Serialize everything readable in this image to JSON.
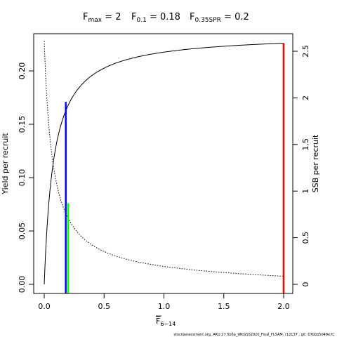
{
  "chart_data": {
    "type": "line",
    "title_parts": [
      {
        "main": "F",
        "sub": "max",
        "rest": " = 2"
      },
      {
        "main": "F",
        "sub": "0.1",
        "rest": " = 0.18"
      },
      {
        "main": "F",
        "sub": "0.35SPR",
        "rest": " = 0.2"
      }
    ],
    "xlabel": {
      "main": "F",
      "sub": "6−14"
    },
    "ylabel_left": "Yield per recruit",
    "ylabel_right": "SSB per recruit",
    "xlim": [
      0,
      2
    ],
    "ylim_left": [
      0,
      0.23
    ],
    "ylim_right": [
      0,
      2.6
    ],
    "x_ticks": [
      "0.0",
      "0.5",
      "1.0",
      "1.5",
      "2.0"
    ],
    "x_tick_values": [
      0,
      0.5,
      1.0,
      1.5,
      2.0
    ],
    "y_left_ticks": [
      "0.00",
      "0.05",
      "0.10",
      "0.15",
      "0.20"
    ],
    "y_left_tick_values": [
      0,
      0.05,
      0.1,
      0.15,
      0.2
    ],
    "y_right_ticks": [
      "0",
      "0.5",
      "1",
      "1.5",
      "2",
      "2.5"
    ],
    "y_right_tick_values": [
      0,
      0.5,
      1,
      1.5,
      2,
      2.5
    ],
    "series": [
      {
        "axis": "left",
        "style": "solid",
        "color": "#000000",
        "x": [
          0,
          0.02,
          0.05,
          0.08,
          0.1,
          0.13,
          0.15,
          0.18,
          0.2,
          0.25,
          0.3,
          0.4,
          0.5,
          0.6,
          0.7,
          0.8,
          1.0,
          1.2,
          1.4,
          1.6,
          1.8,
          2.0
        ],
        "values": [
          0,
          0.041,
          0.087,
          0.121,
          0.138,
          0.157,
          0.166,
          0.176,
          0.181,
          0.19,
          0.196,
          0.204,
          0.209,
          0.213,
          0.215,
          0.217,
          0.22,
          0.222,
          0.223,
          0.224,
          0.225,
          0.226
        ]
      },
      {
        "axis": "right",
        "style": "dotted",
        "color": "#000000",
        "x": [
          0,
          0.02,
          0.05,
          0.08,
          0.1,
          0.13,
          0.15,
          0.18,
          0.2,
          0.25,
          0.3,
          0.4,
          0.5,
          0.6,
          0.7,
          0.8,
          1.0,
          1.2,
          1.4,
          1.6,
          1.8,
          2.0
        ],
        "values": [
          2.56,
          2.1,
          1.67,
          1.39,
          1.23,
          1.05,
          0.96,
          0.85,
          0.8,
          0.69,
          0.61,
          0.5,
          0.43,
          0.38,
          0.34,
          0.31,
          0.26,
          0.23,
          0.2,
          0.18,
          0.17,
          0.15
        ]
      }
    ],
    "reference_lines": [
      {
        "label": "F0.1",
        "x": 0.18,
        "y_left": 0.171,
        "color": "#0000ff"
      },
      {
        "label": "F0.35SPR",
        "x": 0.2,
        "y_left": 0.076,
        "color": "#00ff00"
      },
      {
        "label": "Fmax",
        "x": 2.0,
        "y_left": 0.226,
        "color": "#ff0000"
      }
    ],
    "grid": false,
    "legend": "none"
  },
  "footnote": "stockassessment.org, ARU.27.5b6a_WKGSS2020_Final_FLSAM, r12137 , git: b7bbb5048e7c"
}
